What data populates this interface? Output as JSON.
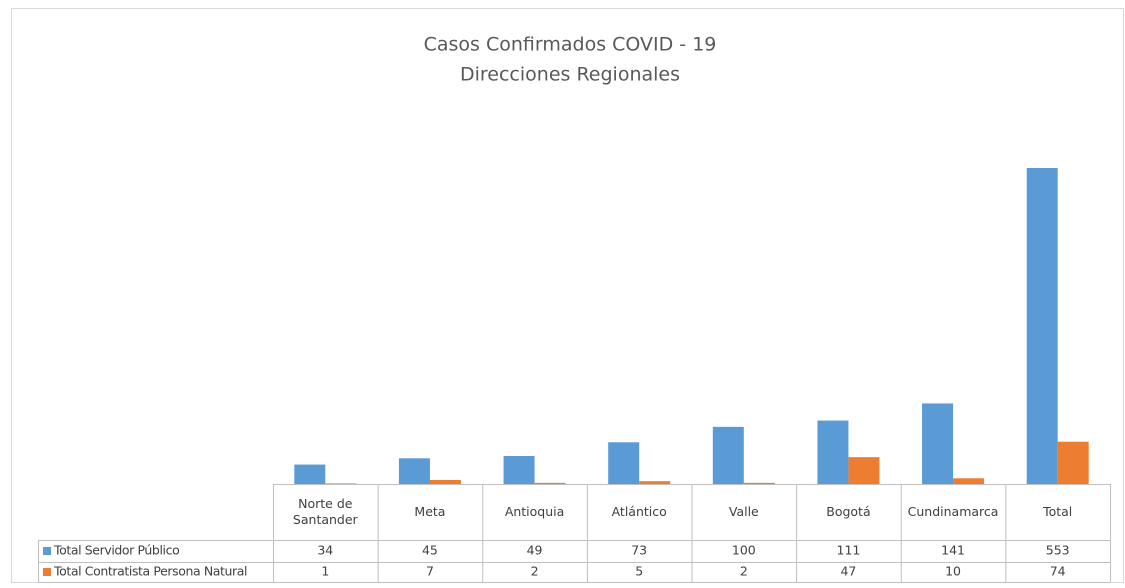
{
  "chart_data": {
    "type": "bar",
    "title": "Casos Confirmados COVID - 19",
    "subtitle": "Direcciones Regionales",
    "categories": [
      "Norte de Santander",
      "Meta",
      "Antioquia",
      "Atlántico",
      "Valle",
      "Bogotá",
      "Cundinamarca",
      "Total"
    ],
    "series": [
      {
        "name": "Total Servidor Público",
        "color": "#5b9bd5",
        "values": [
          34,
          45,
          49,
          73,
          100,
          111,
          141,
          553
        ]
      },
      {
        "name": "Total Contratista Persona Natural",
        "color": "#ed7d31",
        "values": [
          1,
          7,
          2,
          5,
          2,
          47,
          10,
          74
        ]
      }
    ],
    "data_table": true
  }
}
